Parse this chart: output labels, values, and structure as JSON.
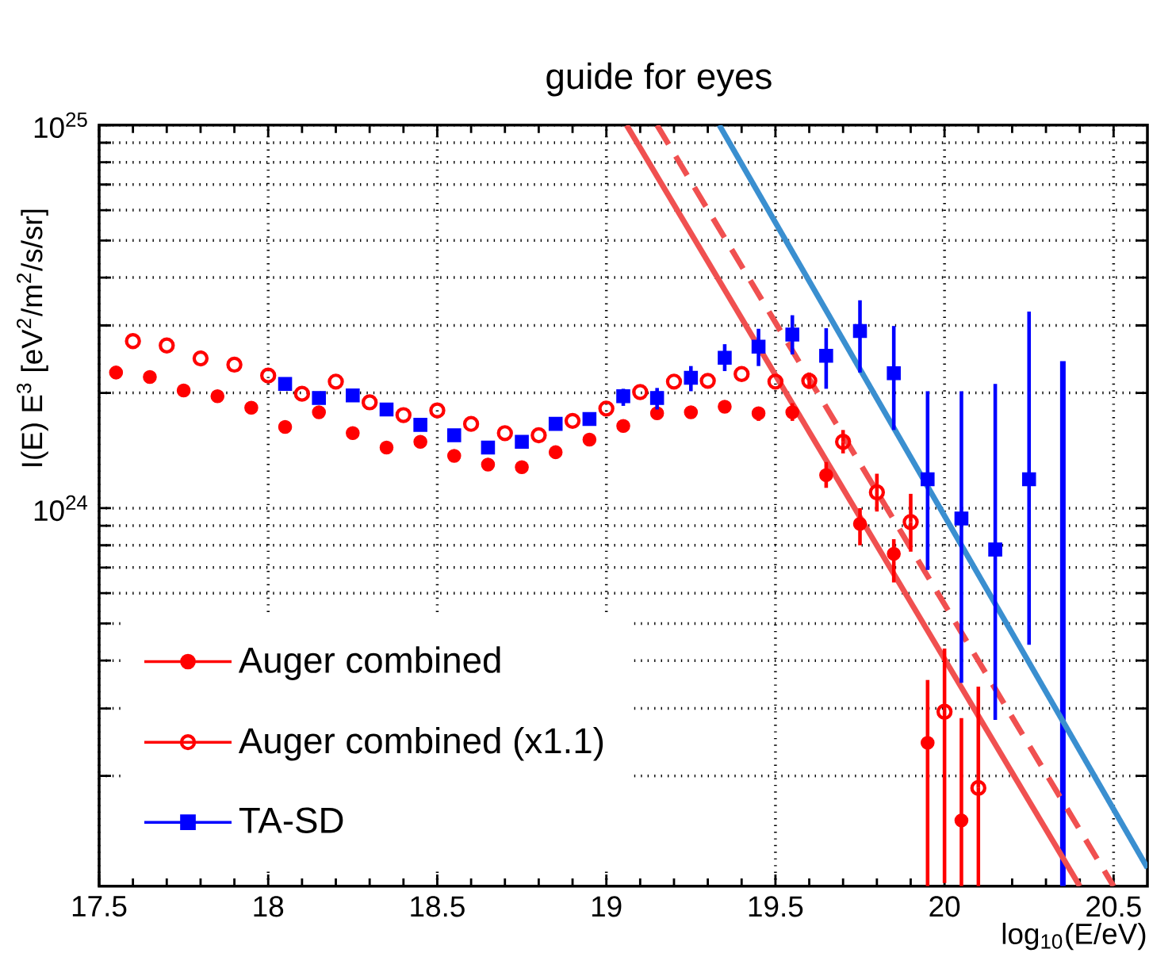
{
  "chart_data": {
    "type": "scatter",
    "annotations": [
      "guide for eyes"
    ],
    "xlabel": "log$_{10}$(E/eV)",
    "ylabel": "I(E) E$^{3}$ [eV$^{2}$/m$^{2}$/s/sr]",
    "xlim": [
      17.5,
      20.6
    ],
    "xticks": [
      17.5,
      18,
      18.5,
      19,
      19.5,
      20,
      20.5
    ],
    "ylim": [
      1.03e+23,
      1e+25
    ],
    "yticks": [
      {
        "value": 2e+23,
        "label": null
      },
      {
        "value": 3e+23,
        "label": null
      },
      {
        "value": 4e+23,
        "label": null
      },
      {
        "value": 5e+23,
        "label": null
      },
      {
        "value": 6e+23,
        "label": null
      },
      {
        "value": 7e+23,
        "label": null
      },
      {
        "value": 8e+23,
        "label": null
      },
      {
        "value": 9e+23,
        "label": null
      },
      {
        "value": 1e+24,
        "label": "10$^{24}$"
      },
      {
        "value": 2e+24,
        "label": null
      },
      {
        "value": 3e+24,
        "label": null
      },
      {
        "value": 4e+24,
        "label": null
      },
      {
        "value": 5e+24,
        "label": null
      },
      {
        "value": 6e+24,
        "label": null
      },
      {
        "value": 7e+24,
        "label": null
      },
      {
        "value": 8e+24,
        "label": null
      },
      {
        "value": 9e+24,
        "label": null
      },
      {
        "value": 1e+25,
        "label": "10$^{25}$"
      }
    ],
    "log": "y",
    "grid": true,
    "legend": "bottom left",
    "series": [
      {
        "name": "Auger combined",
        "color": "#ff0000",
        "marker": "circle",
        "x": [
          17.55,
          17.65,
          17.75,
          17.85,
          17.95,
          18.05,
          18.15,
          18.25,
          18.35,
          18.45,
          18.55,
          18.65,
          18.75,
          18.85,
          18.95,
          19.05,
          19.15,
          19.25,
          19.35,
          19.45,
          19.55,
          19.65,
          19.75,
          19.85,
          19.95,
          20.05
        ],
        "values": [
          2.26e+24,
          2.2e+24,
          2.03e+24,
          1.96e+24,
          1.83e+24,
          1.63e+24,
          1.78e+24,
          1.57e+24,
          1.44e+24,
          1.49e+24,
          1.37e+24,
          1.3e+24,
          1.28e+24,
          1.4e+24,
          1.51e+24,
          1.64e+24,
          1.77e+24,
          1.78e+24,
          1.84e+24,
          1.77e+24,
          1.78e+24,
          1.22e+24,
          9.1e+23,
          7.6e+23,
          2.44e+23,
          1.53e+23
        ],
        "errors": [
          null,
          null,
          null,
          null,
          null,
          null,
          null,
          null,
          null,
          null,
          null,
          null,
          null,
          null,
          null,
          null,
          null,
          null,
          null,
          [
            1.69e+24,
            1.84e+24
          ],
          [
            1.69e+24,
            1.88e+24
          ],
          [
            1.13e+24,
            1.32e+24
          ],
          [
            8e+23,
            1e+24
          ],
          [
            6.4e+23,
            8.3e+23
          ],
          [
            1.03e+23,
            3.56e+23
          ],
          [
            1.03e+23,
            2.83e+23
          ]
        ]
      },
      {
        "name": "Auger combined (x1.1)",
        "color": "#ff0000",
        "marker": "open circle",
        "x": [
          17.6,
          17.7,
          17.8,
          17.9,
          18.0,
          18.1,
          18.2,
          18.3,
          18.4,
          18.5,
          18.6,
          18.7,
          18.8,
          18.9,
          19.0,
          19.1,
          19.2,
          19.3,
          19.4,
          19.5,
          19.6,
          19.7,
          19.8,
          19.9,
          20.0,
          20.1
        ],
        "values": [
          2.73e+24,
          2.66e+24,
          2.46e+24,
          2.37e+24,
          2.22e+24,
          1.99e+24,
          2.14e+24,
          1.89e+24,
          1.75e+24,
          1.8e+24,
          1.66e+24,
          1.57e+24,
          1.55e+24,
          1.69e+24,
          1.82e+24,
          2.01e+24,
          2.14e+24,
          2.15e+24,
          2.24e+24,
          2.14e+24,
          2.15e+24,
          1.49e+24,
          1.1e+24,
          9.2e+23,
          2.94e+23,
          1.86e+23
        ],
        "errors": [
          null,
          null,
          null,
          null,
          null,
          null,
          null,
          null,
          null,
          null,
          null,
          null,
          null,
          null,
          null,
          null,
          null,
          null,
          null,
          null,
          [
            2.05e+24,
            2.26e+24
          ],
          [
            1.39e+24,
            1.6e+24
          ],
          [
            9.8e+23,
            1.23e+24
          ],
          [
            7.7e+23,
            1.09e+24
          ],
          [
            1.05e+23,
            4.3e+23
          ],
          [
            1.03e+23,
            3.42e+23
          ]
        ]
      },
      {
        "name": "TA-SD",
        "color": "#0000ff",
        "marker": "square",
        "x": [
          18.05,
          18.15,
          18.25,
          18.35,
          18.45,
          18.55,
          18.65,
          18.75,
          18.85,
          18.95,
          19.05,
          19.15,
          19.25,
          19.35,
          19.45,
          19.55,
          19.65,
          19.75,
          19.85,
          19.95,
          20.05,
          20.15,
          20.25
        ],
        "values": [
          2.11e+24,
          1.94e+24,
          1.97e+24,
          1.81e+24,
          1.65e+24,
          1.55e+24,
          1.44e+24,
          1.49e+24,
          1.66e+24,
          1.71e+24,
          1.96e+24,
          1.94e+24,
          2.19e+24,
          2.47e+24,
          2.64e+24,
          2.84e+24,
          2.5e+24,
          2.9e+24,
          2.25e+24,
          1.19e+24,
          9.4e+23,
          7.8e+23,
          1.19e+24
        ],
        "errors": [
          null,
          null,
          null,
          null,
          null,
          null,
          null,
          null,
          null,
          null,
          [
            1.85e+24,
            2.05e+24
          ],
          [
            1.81e+24,
            2.06e+24
          ],
          [
            2.02e+24,
            2.35e+24
          ],
          [
            2.28e+24,
            2.68e+24
          ],
          [
            2.35e+24,
            2.94e+24
          ],
          [
            2.52e+24,
            3.19e+24
          ],
          [
            2.05e+24,
            2.95e+24
          ],
          [
            2.26e+24,
            3.49e+24
          ],
          [
            1.6e+24,
            2.99e+24
          ],
          [
            6.9e+23,
            2.02e+24
          ],
          [
            3.5e+23,
            2.02e+24
          ],
          [
            2.8e+23,
            2.11e+24
          ],
          [
            4.4e+23,
            3.26e+24
          ]
        ]
      },
      {
        "type": "line",
        "color": "#0000ff",
        "x": [
          20.35,
          20.35
        ],
        "values": [
          1.03e+23,
          2.42e+24
        ]
      },
      {
        "type": "line",
        "color": "#f05050",
        "line_style": "solid",
        "x": [
          19.06,
          20.4
        ],
        "values": [
          1e+25,
          1.03e+23
        ]
      },
      {
        "type": "line",
        "color": "#f05050",
        "line_style": "dashed",
        "x": [
          19.15,
          20.5
        ],
        "values": [
          1e+25,
          1.03e+23
        ]
      },
      {
        "type": "line",
        "color": "#3a8fd0",
        "line_style": "solid",
        "x": [
          19.334,
          20.6
        ],
        "values": [
          1e+25,
          1.15e+23
        ]
      }
    ]
  }
}
